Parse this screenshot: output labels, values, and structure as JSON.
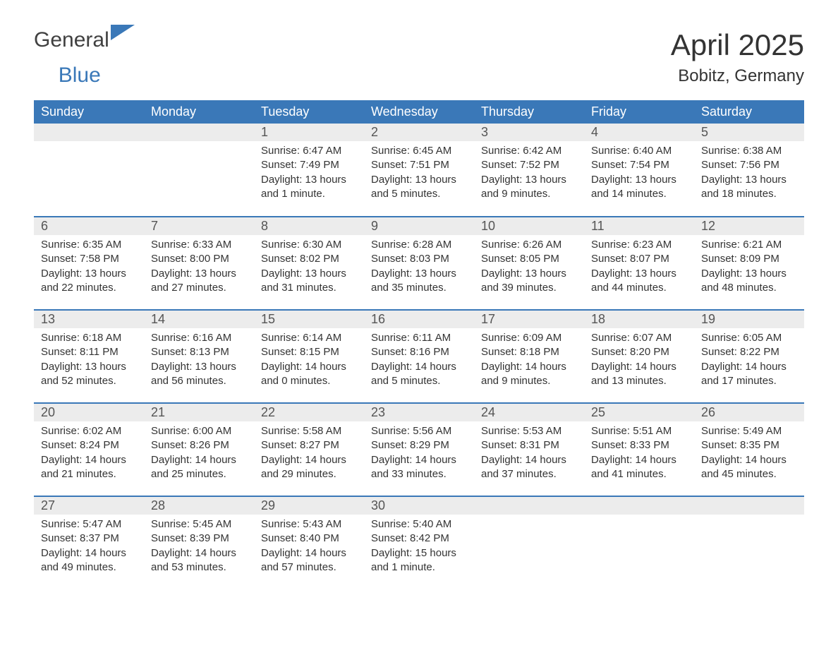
{
  "brand": {
    "part1": "General",
    "part2": "Blue"
  },
  "title": {
    "month": "April 2025",
    "location": "Bobitz, Germany"
  },
  "colors": {
    "brand_blue": "#3a78b8",
    "header_bg": "#3a78b8",
    "band_bg": "#ececec",
    "text": "#333333",
    "white": "#ffffff"
  },
  "calendar": {
    "day_headers": [
      "Sunday",
      "Monday",
      "Tuesday",
      "Wednesday",
      "Thursday",
      "Friday",
      "Saturday"
    ],
    "weeks": [
      [
        null,
        null,
        {
          "n": "1",
          "sunrise": "Sunrise: 6:47 AM",
          "sunset": "Sunset: 7:49 PM",
          "daylight": "Daylight: 13 hours and 1 minute."
        },
        {
          "n": "2",
          "sunrise": "Sunrise: 6:45 AM",
          "sunset": "Sunset: 7:51 PM",
          "daylight": "Daylight: 13 hours and 5 minutes."
        },
        {
          "n": "3",
          "sunrise": "Sunrise: 6:42 AM",
          "sunset": "Sunset: 7:52 PM",
          "daylight": "Daylight: 13 hours and 9 minutes."
        },
        {
          "n": "4",
          "sunrise": "Sunrise: 6:40 AM",
          "sunset": "Sunset: 7:54 PM",
          "daylight": "Daylight: 13 hours and 14 minutes."
        },
        {
          "n": "5",
          "sunrise": "Sunrise: 6:38 AM",
          "sunset": "Sunset: 7:56 PM",
          "daylight": "Daylight: 13 hours and 18 minutes."
        }
      ],
      [
        {
          "n": "6",
          "sunrise": "Sunrise: 6:35 AM",
          "sunset": "Sunset: 7:58 PM",
          "daylight": "Daylight: 13 hours and 22 minutes."
        },
        {
          "n": "7",
          "sunrise": "Sunrise: 6:33 AM",
          "sunset": "Sunset: 8:00 PM",
          "daylight": "Daylight: 13 hours and 27 minutes."
        },
        {
          "n": "8",
          "sunrise": "Sunrise: 6:30 AM",
          "sunset": "Sunset: 8:02 PM",
          "daylight": "Daylight: 13 hours and 31 minutes."
        },
        {
          "n": "9",
          "sunrise": "Sunrise: 6:28 AM",
          "sunset": "Sunset: 8:03 PM",
          "daylight": "Daylight: 13 hours and 35 minutes."
        },
        {
          "n": "10",
          "sunrise": "Sunrise: 6:26 AM",
          "sunset": "Sunset: 8:05 PM",
          "daylight": "Daylight: 13 hours and 39 minutes."
        },
        {
          "n": "11",
          "sunrise": "Sunrise: 6:23 AM",
          "sunset": "Sunset: 8:07 PM",
          "daylight": "Daylight: 13 hours and 44 minutes."
        },
        {
          "n": "12",
          "sunrise": "Sunrise: 6:21 AM",
          "sunset": "Sunset: 8:09 PM",
          "daylight": "Daylight: 13 hours and 48 minutes."
        }
      ],
      [
        {
          "n": "13",
          "sunrise": "Sunrise: 6:18 AM",
          "sunset": "Sunset: 8:11 PM",
          "daylight": "Daylight: 13 hours and 52 minutes."
        },
        {
          "n": "14",
          "sunrise": "Sunrise: 6:16 AM",
          "sunset": "Sunset: 8:13 PM",
          "daylight": "Daylight: 13 hours and 56 minutes."
        },
        {
          "n": "15",
          "sunrise": "Sunrise: 6:14 AM",
          "sunset": "Sunset: 8:15 PM",
          "daylight": "Daylight: 14 hours and 0 minutes."
        },
        {
          "n": "16",
          "sunrise": "Sunrise: 6:11 AM",
          "sunset": "Sunset: 8:16 PM",
          "daylight": "Daylight: 14 hours and 5 minutes."
        },
        {
          "n": "17",
          "sunrise": "Sunrise: 6:09 AM",
          "sunset": "Sunset: 8:18 PM",
          "daylight": "Daylight: 14 hours and 9 minutes."
        },
        {
          "n": "18",
          "sunrise": "Sunrise: 6:07 AM",
          "sunset": "Sunset: 8:20 PM",
          "daylight": "Daylight: 14 hours and 13 minutes."
        },
        {
          "n": "19",
          "sunrise": "Sunrise: 6:05 AM",
          "sunset": "Sunset: 8:22 PM",
          "daylight": "Daylight: 14 hours and 17 minutes."
        }
      ],
      [
        {
          "n": "20",
          "sunrise": "Sunrise: 6:02 AM",
          "sunset": "Sunset: 8:24 PM",
          "daylight": "Daylight: 14 hours and 21 minutes."
        },
        {
          "n": "21",
          "sunrise": "Sunrise: 6:00 AM",
          "sunset": "Sunset: 8:26 PM",
          "daylight": "Daylight: 14 hours and 25 minutes."
        },
        {
          "n": "22",
          "sunrise": "Sunrise: 5:58 AM",
          "sunset": "Sunset: 8:27 PM",
          "daylight": "Daylight: 14 hours and 29 minutes."
        },
        {
          "n": "23",
          "sunrise": "Sunrise: 5:56 AM",
          "sunset": "Sunset: 8:29 PM",
          "daylight": "Daylight: 14 hours and 33 minutes."
        },
        {
          "n": "24",
          "sunrise": "Sunrise: 5:53 AM",
          "sunset": "Sunset: 8:31 PM",
          "daylight": "Daylight: 14 hours and 37 minutes."
        },
        {
          "n": "25",
          "sunrise": "Sunrise: 5:51 AM",
          "sunset": "Sunset: 8:33 PM",
          "daylight": "Daylight: 14 hours and 41 minutes."
        },
        {
          "n": "26",
          "sunrise": "Sunrise: 5:49 AM",
          "sunset": "Sunset: 8:35 PM",
          "daylight": "Daylight: 14 hours and 45 minutes."
        }
      ],
      [
        {
          "n": "27",
          "sunrise": "Sunrise: 5:47 AM",
          "sunset": "Sunset: 8:37 PM",
          "daylight": "Daylight: 14 hours and 49 minutes."
        },
        {
          "n": "28",
          "sunrise": "Sunrise: 5:45 AM",
          "sunset": "Sunset: 8:39 PM",
          "daylight": "Daylight: 14 hours and 53 minutes."
        },
        {
          "n": "29",
          "sunrise": "Sunrise: 5:43 AM",
          "sunset": "Sunset: 8:40 PM",
          "daylight": "Daylight: 14 hours and 57 minutes."
        },
        {
          "n": "30",
          "sunrise": "Sunrise: 5:40 AM",
          "sunset": "Sunset: 8:42 PM",
          "daylight": "Daylight: 15 hours and 1 minute."
        },
        null,
        null,
        null
      ]
    ]
  }
}
